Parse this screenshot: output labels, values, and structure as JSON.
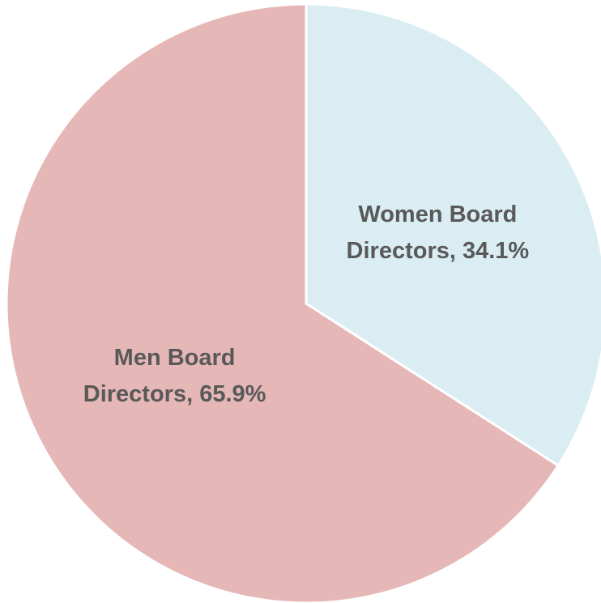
{
  "chart_data": {
    "type": "pie",
    "values": [
      34.1,
      65.9
    ],
    "value_labels": [
      "Women Board Directors, 34.1%",
      "Men Board Directors, 65.9%"
    ],
    "colors": [
      "#daedf3",
      "#e6b7b7"
    ]
  }
}
